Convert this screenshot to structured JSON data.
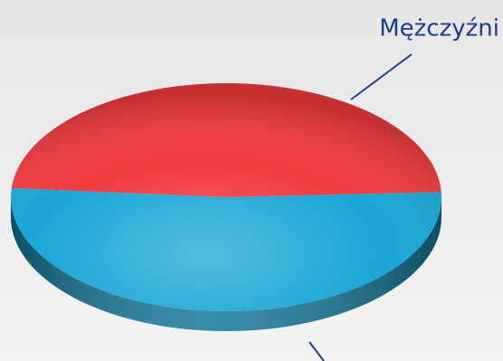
{
  "chart_data": {
    "type": "pie",
    "categories": [
      "Mężczyźni",
      null
    ],
    "values": [
      48,
      52
    ],
    "colors": [
      "#f03a3e",
      "#1aa6d6"
    ]
  }
}
